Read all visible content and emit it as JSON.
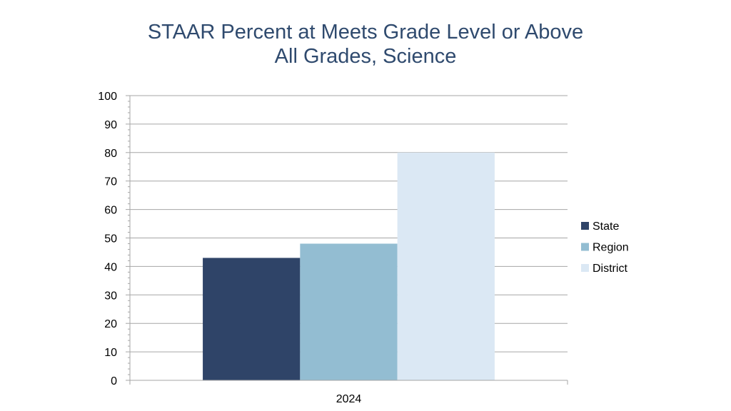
{
  "chart_data": {
    "type": "bar",
    "title": "STAAR Percent at Meets Grade Level or Above",
    "subtitle": "All Grades, Science",
    "categories": [
      "2024"
    ],
    "series": [
      {
        "name": "State",
        "values": [
          43
        ],
        "color": "#2f4468"
      },
      {
        "name": "Region",
        "values": [
          48
        ],
        "color": "#93bdd2"
      },
      {
        "name": "District",
        "values": [
          80
        ],
        "color": "#dbe8f4"
      }
    ],
    "ylim": [
      0,
      100
    ],
    "yticks": [
      0,
      10,
      20,
      30,
      40,
      50,
      60,
      70,
      80,
      90,
      100
    ],
    "grid": true,
    "legend": "right"
  }
}
